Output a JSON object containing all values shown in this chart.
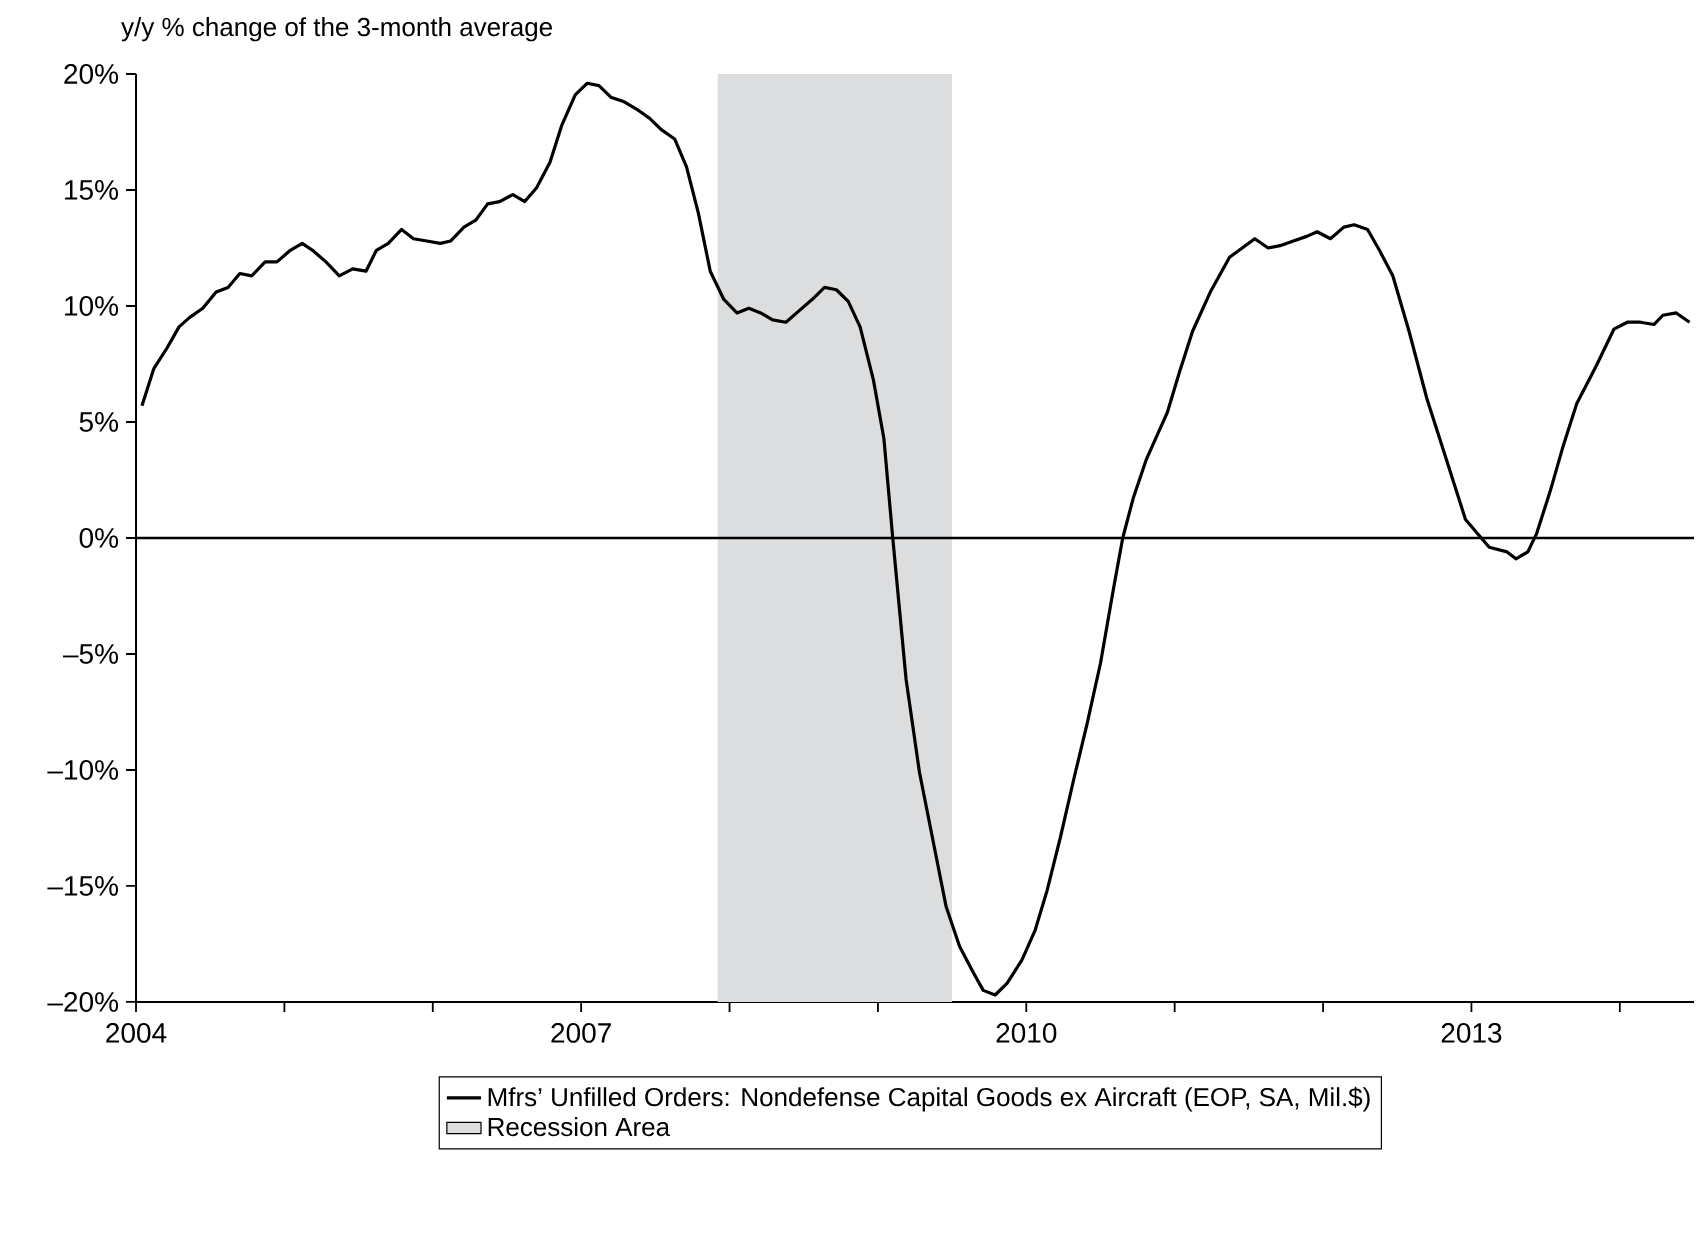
{
  "chart_data": {
    "type": "line",
    "ylabel": "y/y % change of the 3-month average",
    "xlim": [
      2004,
      2014.5
    ],
    "xticks": [
      2004,
      {
        "value": 2005,
        "label": null
      },
      {
        "value": 2006,
        "label": null
      },
      2007,
      {
        "value": 2008,
        "label": null
      },
      {
        "value": 2009,
        "label": null
      },
      2010,
      {
        "value": 2011,
        "label": null
      },
      {
        "value": 2012,
        "label": null
      },
      2013,
      {
        "value": 2014,
        "label": null
      }
    ],
    "ylim": [
      -20,
      20
    ],
    "yticks": [
      {
        "value": -20,
        "label": "–20%"
      },
      {
        "value": -15,
        "label": "–15%"
      },
      {
        "value": -10,
        "label": "–10%"
      },
      {
        "value": -5,
        "label": "–5%"
      },
      {
        "value": 0,
        "label": "0%"
      },
      {
        "value": 5,
        "label": "5%"
      },
      {
        "value": 10,
        "label": "10%"
      },
      {
        "value": 15,
        "label": "15%"
      },
      {
        "value": 20,
        "label": "20%"
      }
    ],
    "legend": "bottom",
    "ref_lines": [
      {
        "axis": "y",
        "value": 0,
        "color": "#000000"
      }
    ],
    "bands": [
      {
        "axis": "x",
        "from": 2007.92,
        "to": 2009.5,
        "label": "Recession Area",
        "color": "#dcdddf"
      }
    ],
    "series": [
      {
        "name": "Mfrs’ Unfilled Orders: Nondefense Capital Goods ex Aircraft (EOP, SA, Mil.$)",
        "color": "#000000",
        "x": [
          2004.04,
          2004.12,
          2004.21,
          2004.29,
          2004.36,
          2004.45,
          2004.54,
          2004.62,
          2004.7,
          2004.78,
          2004.87,
          2004.95,
          2005.04,
          2005.12,
          2005.19,
          2005.28,
          2005.37,
          2005.46,
          2005.55,
          2005.62,
          2005.7,
          2005.79,
          2005.87,
          2005.96,
          2006.05,
          2006.12,
          2006.21,
          2006.29,
          2006.37,
          2006.45,
          2006.54,
          2006.62,
          2006.7,
          2006.79,
          2006.87,
          2006.96,
          2007.04,
          2007.12,
          2007.2,
          2007.29,
          2007.37,
          2007.46,
          2007.54,
          2007.63,
          2007.71,
          2007.79,
          2007.87,
          2007.96,
          2008.05,
          2008.13,
          2008.21,
          2008.29,
          2008.38,
          2008.47,
          2008.56,
          2008.64,
          2008.72,
          2008.8,
          2008.88,
          2008.97,
          2009.04,
          2009.1,
          2009.19,
          2009.28,
          2009.37,
          2009.46,
          2009.55,
          2009.64,
          2009.71,
          2009.79,
          2009.87,
          2009.97,
          2010.06,
          2010.14,
          2010.23,
          2010.32,
          2010.41,
          2010.5,
          2010.59,
          2010.65,
          2010.72,
          2010.81,
          2010.95,
          2011.03,
          2011.12,
          2011.24,
          2011.37,
          2011.54,
          2011.63,
          2011.71,
          2011.8,
          2011.89,
          2011.96,
          2012.05,
          2012.14,
          2012.21,
          2012.3,
          2012.38,
          2012.47,
          2012.58,
          2012.7,
          2012.83,
          2012.96,
          2013.12,
          2013.24,
          2013.3,
          2013.38,
          2013.44,
          2013.53,
          2013.62,
          2013.71,
          2013.84,
          2013.96,
          2014.05,
          2014.14,
          2014.23,
          2014.29,
          2014.38,
          2014.47
        ],
        "values": [
          5.7,
          7.3,
          8.2,
          9.1,
          9.5,
          9.9,
          10.6,
          10.8,
          11.4,
          11.3,
          11.9,
          11.9,
          12.4,
          12.7,
          12.4,
          11.9,
          11.3,
          11.6,
          11.5,
          12.4,
          12.7,
          13.3,
          12.9,
          12.8,
          12.7,
          12.8,
          13.4,
          13.7,
          14.4,
          14.5,
          14.8,
          14.5,
          15.1,
          16.2,
          17.8,
          19.1,
          19.6,
          19.5,
          19.0,
          18.8,
          18.5,
          18.1,
          17.6,
          17.2,
          16.0,
          14.0,
          11.5,
          10.3,
          9.7,
          9.9,
          9.7,
          9.4,
          9.3,
          9.8,
          10.3,
          10.8,
          10.7,
          10.2,
          9.1,
          6.8,
          4.3,
          0.0,
          -6.1,
          -10.1,
          -13.0,
          -15.9,
          -17.6,
          -18.7,
          -19.5,
          -19.7,
          -19.2,
          -18.2,
          -16.9,
          -15.2,
          -12.9,
          -10.4,
          -8.0,
          -5.4,
          -2.1,
          0.0,
          1.7,
          3.4,
          5.4,
          7.1,
          8.9,
          10.6,
          12.1,
          12.9,
          12.5,
          12.6,
          12.8,
          13.0,
          13.2,
          12.9,
          13.4,
          13.5,
          13.3,
          12.4,
          11.3,
          8.9,
          6.0,
          3.4,
          0.8,
          -0.4,
          -0.6,
          -0.9,
          -0.6,
          0.2,
          2.0,
          4.0,
          5.8,
          7.4,
          9.0,
          9.3,
          9.3,
          9.2,
          9.6,
          9.7,
          9.3
        ]
      }
    ]
  }
}
